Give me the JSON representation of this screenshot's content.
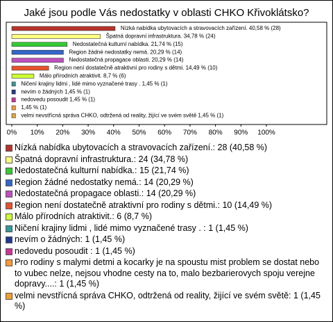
{
  "chart_data": {
    "type": "barh",
    "title": "Jaké jsou podle Vás nedostatky v oblasti CHKO Křivoklátsko?",
    "categories": [
      "Nízká nabídka ubytovacích a stravovacích zařízení.: 28 (40,58 %)",
      "Špatná dopravní infrastruktura.: 24 (34,78 %)",
      "Nedostatečná kulturní nabídka.: 15 (21,74 %)",
      "Region žádné nedostatky nemá.: 14 (20,29 %)",
      "Nedostatečná propagace oblasti.: 14 (20,29 %)",
      "Region není dostatečně atraktivní pro rodiny s dětmi.: 10 (14,49 %)",
      "Málo přírodních atraktivit.: 6 (8,7 %)",
      "Ničení krajiny lidmi , lidé mimo vyznačené trasy . : 1 (1,45 %)",
      "nevím o žádných: 1 (1,45 %)",
      "nedovedu posoudit : 1 (1,45 %)",
      "Pro rodiny s malymi detmi a kocarky je na spoustu mist problem se dostat nebo to vubec nelze, nejsou vhodne cesty na to, malo bezbarierovych spoju verejne dopravy....: 1 (1,45 %)",
      "velmi nevstřícná správa CHKO, odtržená od reality, žijící ve svém světě: 1 (1,45 %)"
    ],
    "values": [
      40.58,
      34.78,
      21.74,
      20.29,
      20.29,
      14.49,
      8.7,
      1.45,
      1.45,
      1.45,
      1.45,
      1.45
    ],
    "value_labels": [
      "Nízká nabídka ubytovacích a stravovacích zařízení. 40,58 % (28)",
      "Špatná dopravní infrastruktura. 34,78 % (24)",
      "Nedostatečná kulturní nabídka. 21,74 % (15)",
      "Region žádné nedostatky nemá. 20,29 % (14)",
      "Nedostatečná propagace oblasti. 20,29 % (14)",
      "Region není dostatečně atraktivní pro rodiny s dětmi. 14,49 % (10)",
      "Málo přírodních atraktivit. 8,7 % (6)",
      "Ničení krajiny lidmi , lidé mimo vyznačené trasy .  1,45 % (1)",
      "nevím o žádných 1,45 % (1)",
      "nedovedu posoudit  1,45 % (1)",
      "1,45 % (1)",
      "velmi nevstřícná správa CHKO, odtržená od reality, žijící ve svém světě 1,45 % (1)"
    ],
    "colors": [
      "#b8332a",
      "#ffff80",
      "#33cc33",
      "#3366cc",
      "#c04fc0",
      "#e8532b",
      "#ccff33",
      "#339999",
      "#1f3a93",
      "#cc3399",
      "#ff9933",
      "#f0a030"
    ],
    "xlim": [
      0,
      100
    ],
    "xticks": [
      {
        "value": 0,
        "label": "0%"
      },
      {
        "value": 10,
        "label": "10%"
      },
      {
        "value": 20,
        "label": "20%"
      },
      {
        "value": 30,
        "label": "30%"
      },
      {
        "value": 40,
        "label": "40%"
      },
      {
        "value": 50,
        "label": "50%"
      },
      {
        "value": 60,
        "label": "60%"
      },
      {
        "value": 70,
        "label": "70%"
      },
      {
        "value": 80,
        "label": "80%"
      },
      {
        "value": 90,
        "label": "90%"
      },
      {
        "value": 100,
        "label": "100%"
      }
    ]
  }
}
